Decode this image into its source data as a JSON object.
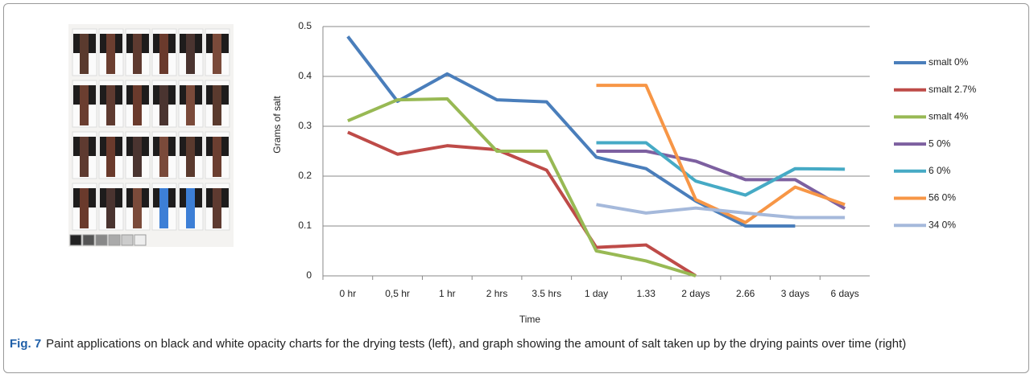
{
  "chart_data": {
    "type": "line",
    "x_label": "Time",
    "y_label": "Grams of salt",
    "categories": [
      "0 hr",
      "0,5 hr",
      "1 hr",
      "2 hrs",
      "3.5 hrs",
      "1 day",
      "1.33",
      "2 days",
      "2.66",
      "3 days",
      "6 days"
    ],
    "ylim": [
      0,
      0.5
    ],
    "yticks": [
      0,
      0.1,
      0.2,
      0.3,
      0.4,
      0.5
    ],
    "grid": true,
    "legend": "right",
    "series": [
      {
        "name": "smalt 0%",
        "color": "#4a7ebb",
        "values": [
          0.48,
          0.35,
          0.405,
          0.353,
          0.349,
          0.238,
          0.215,
          0.15,
          0.1,
          0.1,
          null
        ]
      },
      {
        "name": "smalt 2.7%",
        "color": "#be4b48",
        "values": [
          0.288,
          0.244,
          0.261,
          0.253,
          0.212,
          0.057,
          0.062,
          0,
          null,
          null,
          null
        ]
      },
      {
        "name": "smalt 4%",
        "color": "#98b954",
        "values": [
          0.311,
          0.353,
          0.355,
          0.25,
          0.25,
          0.05,
          0.03,
          0,
          null,
          null,
          null
        ]
      },
      {
        "name": "5 0%",
        "color": "#7d60a0",
        "values": [
          null,
          null,
          null,
          null,
          null,
          0.25,
          0.25,
          0.23,
          0.193,
          0.193,
          0.135
        ]
      },
      {
        "name": "6 0%",
        "color": "#46aac5",
        "values": [
          null,
          null,
          null,
          null,
          null,
          0.267,
          0.267,
          0.19,
          0.162,
          0.215,
          0.214
        ]
      },
      {
        "name": "56 0%",
        "color": "#f79646",
        "values": [
          null,
          null,
          null,
          null,
          null,
          0.382,
          0.382,
          0.153,
          0.107,
          0.178,
          0.143
        ]
      },
      {
        "name": "34 0%",
        "color": "#a5b9db",
        "values": [
          null,
          null,
          null,
          null,
          null,
          0.143,
          0.126,
          0.136,
          0.126,
          0.117,
          0.117
        ]
      }
    ]
  },
  "caption": {
    "label": "Fig. 7",
    "text": "Paint applications on black and white opacity charts for the drying tests (left), and graph showing the amount of salt taken up by the drying paints over time (right)"
  }
}
